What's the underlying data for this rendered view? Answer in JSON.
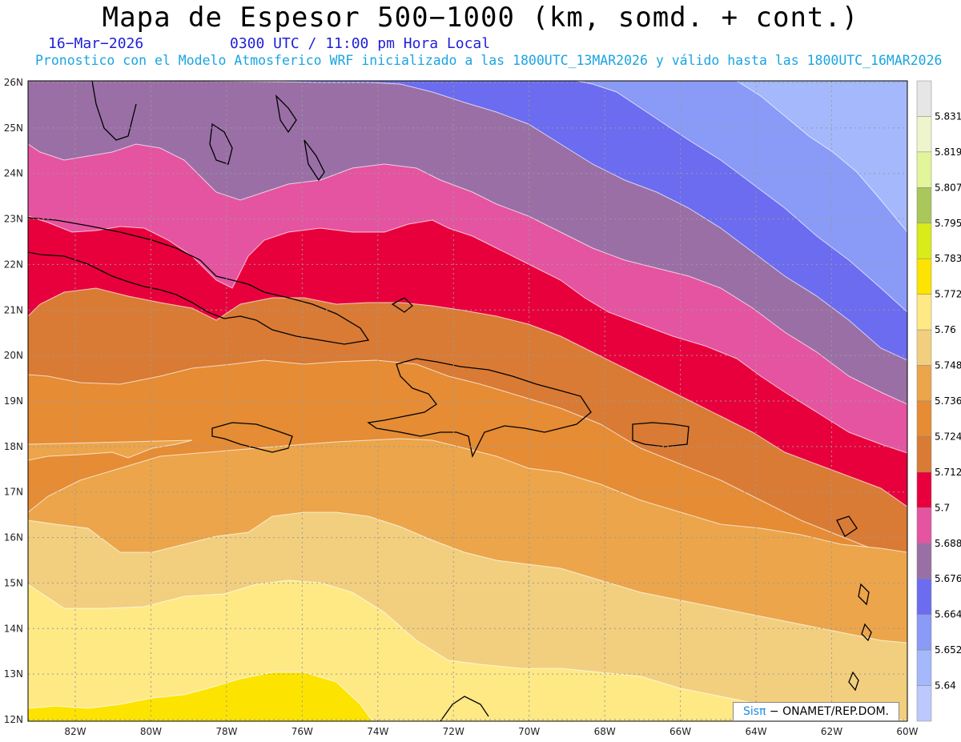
{
  "header": {
    "title": "Mapa de Espesor 500−1000 (km, somd. + cont.)",
    "date": "16−Mar−2026",
    "time": "0300 UTC / 11:00 pm Hora Local",
    "info": "Pronostico con el Modelo Atmosferico WRF inicializado a las 1800UTC_13MAR2026 y válido hasta las  1800UTC_16MAR2026"
  },
  "map": {
    "lat_labels": [
      "26N",
      "25N",
      "24N",
      "23N",
      "22N",
      "21N",
      "20N",
      "19N",
      "18N",
      "17N",
      "16N",
      "15N",
      "14N",
      "13N",
      "12N"
    ],
    "lon_labels": [
      "82W",
      "80W",
      "78W",
      "76W",
      "74W",
      "72W",
      "70W",
      "68W",
      "66W",
      "64W",
      "62W",
      "60W"
    ],
    "bands": [
      {
        "name": "band-5724-5736",
        "color": "#e58c34"
      },
      {
        "name": "band-5712-5724",
        "color": "#d97b35"
      },
      {
        "name": "band-5700-5712",
        "color": "#e8003d"
      },
      {
        "name": "band-5688-5700",
        "color": "#e554a0"
      },
      {
        "name": "band-5676-5688",
        "color": "#9a6fa6"
      },
      {
        "name": "band-5664-5676",
        "color": "#6b6cf0"
      },
      {
        "name": "band-5652-5664",
        "color": "#8a9af7"
      },
      {
        "name": "band-5640-5652",
        "color": "#a4b8fb"
      },
      {
        "name": "band-5736-5748",
        "color": "#eca54a"
      },
      {
        "name": "band-5748-5760",
        "color": "#f2cf7e"
      },
      {
        "name": "band-5760-5772",
        "color": "#fee985"
      },
      {
        "name": "band-5772-5783",
        "color": "#fde300"
      }
    ]
  },
  "colorbar": {
    "labels": [
      "5.831",
      "5.819",
      "5.807",
      "5.795",
      "5.783",
      "5.772",
      "5.76",
      "5.748",
      "5.736",
      "5.724",
      "5.712",
      "5.7",
      "5.688",
      "5.676",
      "5.664",
      "5.652",
      "5.64"
    ],
    "colors": [
      "#e6e6e6",
      "#eef5cc",
      "#e3f59a",
      "#a9c75a",
      "#d9eb18",
      "#fde300",
      "#fee985",
      "#f2cf7e",
      "#eca54a",
      "#e58c34",
      "#d97b35",
      "#e8003d",
      "#e554a0",
      "#9a6fa6",
      "#6b6cf0",
      "#8a9af7",
      "#a4b8fb",
      "#bcc9fc"
    ]
  },
  "credit": {
    "sis": "Sisπ",
    "rest": " − ONAMET/REP.DOM."
  }
}
